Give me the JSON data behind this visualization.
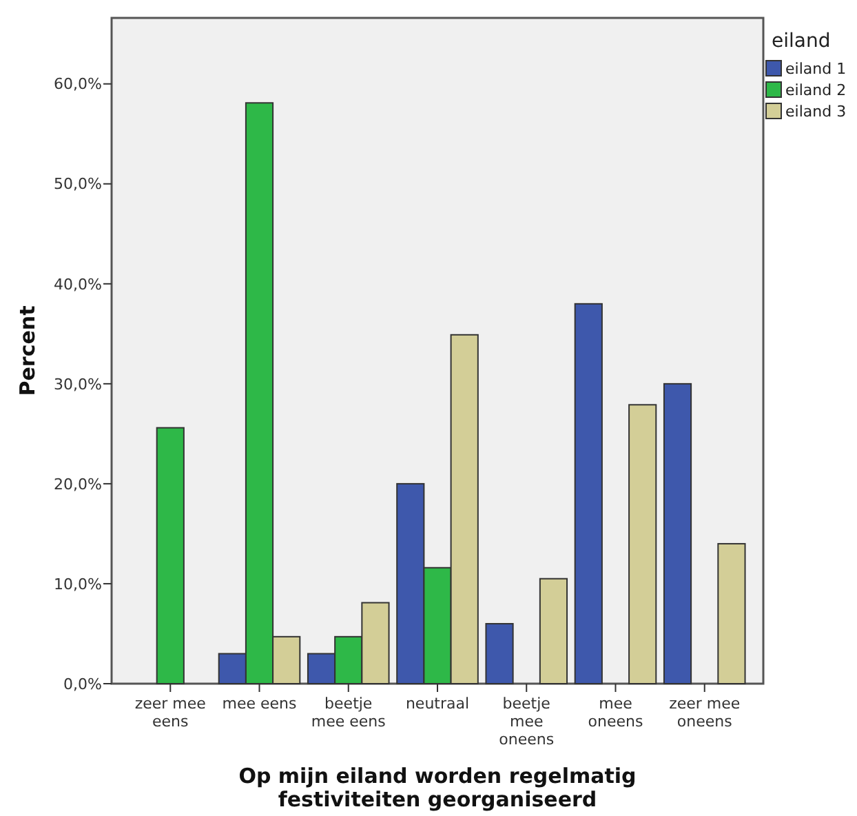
{
  "chart_data": {
    "type": "bar",
    "xlabel": "Op mijn eiland worden regelmatig festiviteiten georganiseerd",
    "ylabel": "Percent",
    "legend_title": "eiland",
    "legend": "right",
    "categories": [
      "zeer mee eens",
      "mee eens",
      "beetje mee eens",
      "neutraal",
      "beetje mee oneens",
      "mee oneens",
      "zeer mee oneens"
    ],
    "series": [
      {
        "name": "eiland 1",
        "color": "#3e58ac",
        "values": [
          0,
          3,
          3,
          20,
          6,
          38,
          30
        ]
      },
      {
        "name": "eiland 2",
        "color": "#2eb848",
        "values": [
          25.6,
          58.1,
          4.7,
          11.6,
          0,
          0,
          0
        ]
      },
      {
        "name": "eiland 3",
        "color": "#d3ce97",
        "values": [
          0,
          4.7,
          8.1,
          34.9,
          10.5,
          27.9,
          14
        ]
      }
    ],
    "ylim": [
      0,
      66.6
    ],
    "yticks": [
      {
        "value": 0,
        "label": "0,0%"
      },
      {
        "value": 10,
        "label": "10,0%"
      },
      {
        "value": 20,
        "label": "20,0%"
      },
      {
        "value": 30,
        "label": "30,0%"
      },
      {
        "value": 40,
        "label": "40,0%"
      },
      {
        "value": 50,
        "label": "50,0%"
      },
      {
        "value": 60,
        "label": "60,0%"
      }
    ]
  }
}
